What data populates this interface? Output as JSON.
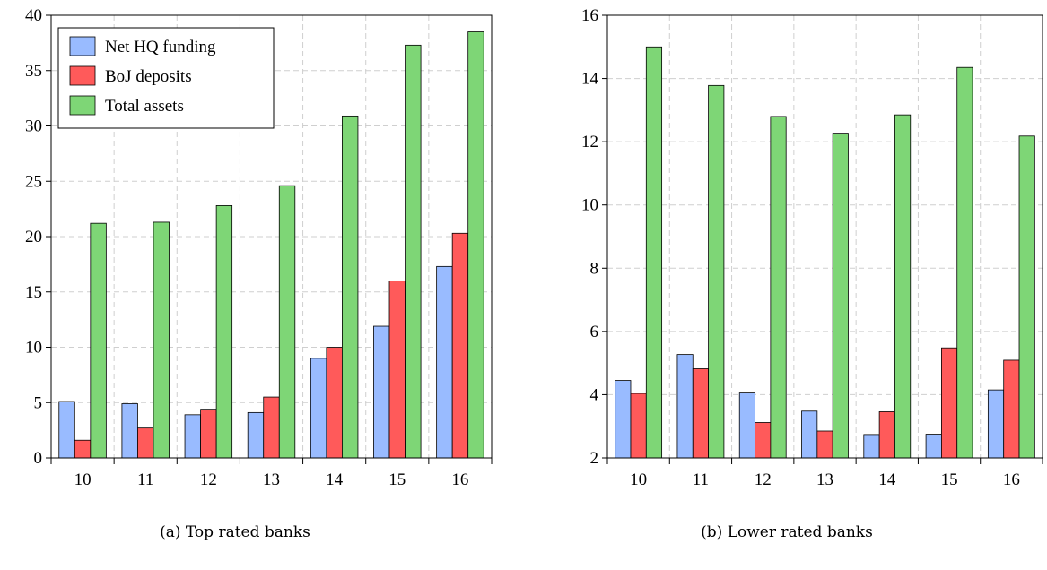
{
  "colors": {
    "net_hq": "#99bbff",
    "boj": "#ff5a5a",
    "assets": "#7ed676"
  },
  "chart_data": [
    {
      "type": "bar",
      "caption": "(a) Top rated banks",
      "categories": [
        "10",
        "11",
        "12",
        "13",
        "14",
        "15",
        "16"
      ],
      "series": [
        {
          "name": "Net HQ funding",
          "values": [
            5.1,
            4.9,
            3.9,
            4.1,
            9.0,
            11.9,
            17.3
          ]
        },
        {
          "name": "BoJ deposits",
          "values": [
            1.6,
            2.7,
            4.4,
            5.5,
            10.0,
            16.0,
            20.3
          ]
        },
        {
          "name": "Total assets",
          "values": [
            21.2,
            21.3,
            22.8,
            24.6,
            30.9,
            37.3,
            38.5
          ]
        }
      ],
      "ylim": [
        0,
        40
      ],
      "yticks": [
        "0",
        "5",
        "10",
        "15",
        "20",
        "25",
        "30",
        "35",
        "40"
      ],
      "grid": true,
      "legend": "top-left"
    },
    {
      "type": "bar",
      "caption": "(b) Lower rated banks",
      "categories": [
        "10",
        "11",
        "12",
        "13",
        "14",
        "15",
        "16"
      ],
      "series": [
        {
          "name": "Net HQ funding",
          "values": [
            4.45,
            5.27,
            4.08,
            3.48,
            2.74,
            2.75,
            4.15
          ]
        },
        {
          "name": "BoJ deposits",
          "values": [
            4.04,
            4.82,
            3.12,
            2.85,
            3.46,
            5.48,
            5.09
          ]
        },
        {
          "name": "Total assets",
          "values": [
            15.0,
            13.78,
            12.8,
            12.27,
            12.85,
            14.35,
            12.18
          ]
        }
      ],
      "ylim": [
        2,
        16
      ],
      "yticks": [
        "2",
        "4",
        "6",
        "8",
        "10",
        "12",
        "14",
        "16"
      ],
      "grid": true,
      "legend": "none"
    }
  ]
}
